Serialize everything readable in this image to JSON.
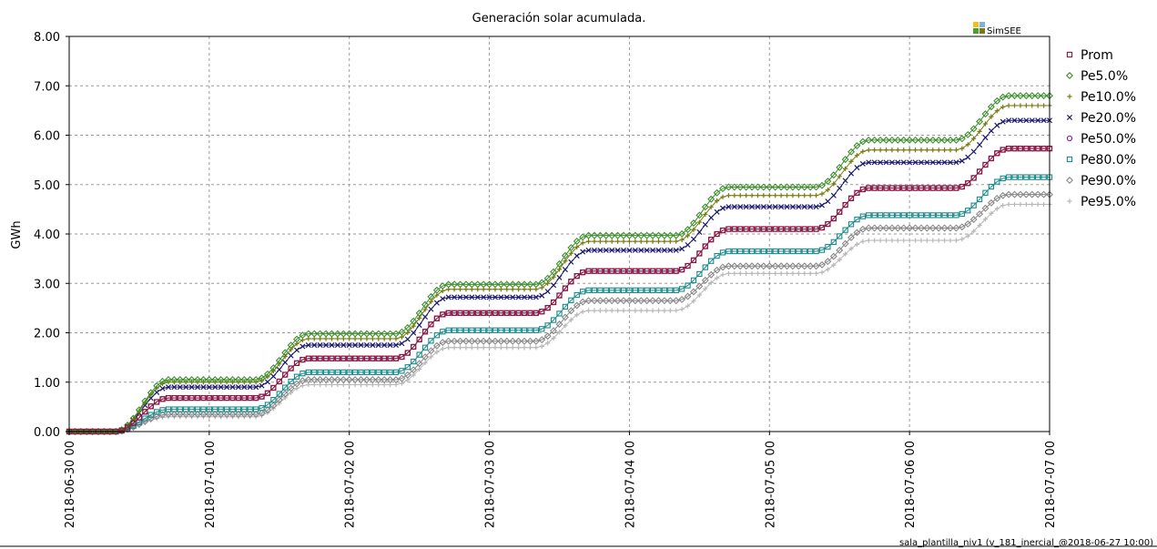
{
  "footer_text": "sala_plantilla_niv1 (v_181_inercial_@2018-06-27 10:00)",
  "logo_text": "SimSEE",
  "chart_data": {
    "type": "line",
    "title": "Generación solar acumulada.",
    "ylabel": "GWh",
    "xlabel": "",
    "ylim": [
      0,
      8
    ],
    "yticks": [
      "0.00",
      "1.00",
      "2.00",
      "3.00",
      "4.00",
      "5.00",
      "6.00",
      "7.00",
      "8.00"
    ],
    "xlim": [
      0,
      7
    ],
    "xticks": [
      "2018-06-30 00",
      "2018-07-01 00",
      "2018-07-02 00",
      "2018-07-03 00",
      "2018-07-04 00",
      "2018-07-05 00",
      "2018-07-06 00",
      "2018-07-07 00"
    ],
    "x_unit": "days since 2018-06-30 00",
    "grid": true,
    "legend_position": "right",
    "series": [
      {
        "name": "Prom",
        "color": "#8b1a3a",
        "marker": "square",
        "daily": [
          0.68,
          1.48,
          2.4,
          3.25,
          4.1,
          4.93,
          5.73
        ]
      },
      {
        "name": "Pe5.0%",
        "color": "#3c8f2c",
        "marker": "diamond",
        "daily": [
          1.05,
          1.98,
          2.98,
          3.97,
          4.95,
          5.9,
          6.8
        ]
      },
      {
        "name": "Pe10.0%",
        "color": "#7a7a10",
        "marker": "plus",
        "daily": [
          1.0,
          1.88,
          2.88,
          3.85,
          4.78,
          5.7,
          6.6
        ]
      },
      {
        "name": "Pe20.0%",
        "color": "#1a1a6e",
        "marker": "cross",
        "daily": [
          0.9,
          1.75,
          2.72,
          3.67,
          4.55,
          5.45,
          6.3
        ]
      },
      {
        "name": "Pe50.0%",
        "color": "#8a1a9a",
        "marker": "circle",
        "daily": [
          0.68,
          1.48,
          2.4,
          3.25,
          4.1,
          4.93,
          5.73
        ]
      },
      {
        "name": "Pe80.0%",
        "color": "#1a8a8a",
        "marker": "square",
        "daily": [
          0.45,
          1.2,
          2.05,
          2.86,
          3.65,
          4.38,
          5.15
        ]
      },
      {
        "name": "Pe90.0%",
        "color": "#888888",
        "marker": "diamond",
        "daily": [
          0.35,
          1.05,
          1.83,
          2.65,
          3.35,
          4.12,
          4.8
        ]
      },
      {
        "name": "Pe95.0%",
        "color": "#b8b8b8",
        "marker": "plus",
        "daily": [
          0.3,
          0.95,
          1.7,
          2.45,
          3.2,
          3.87,
          4.6
        ]
      }
    ]
  }
}
